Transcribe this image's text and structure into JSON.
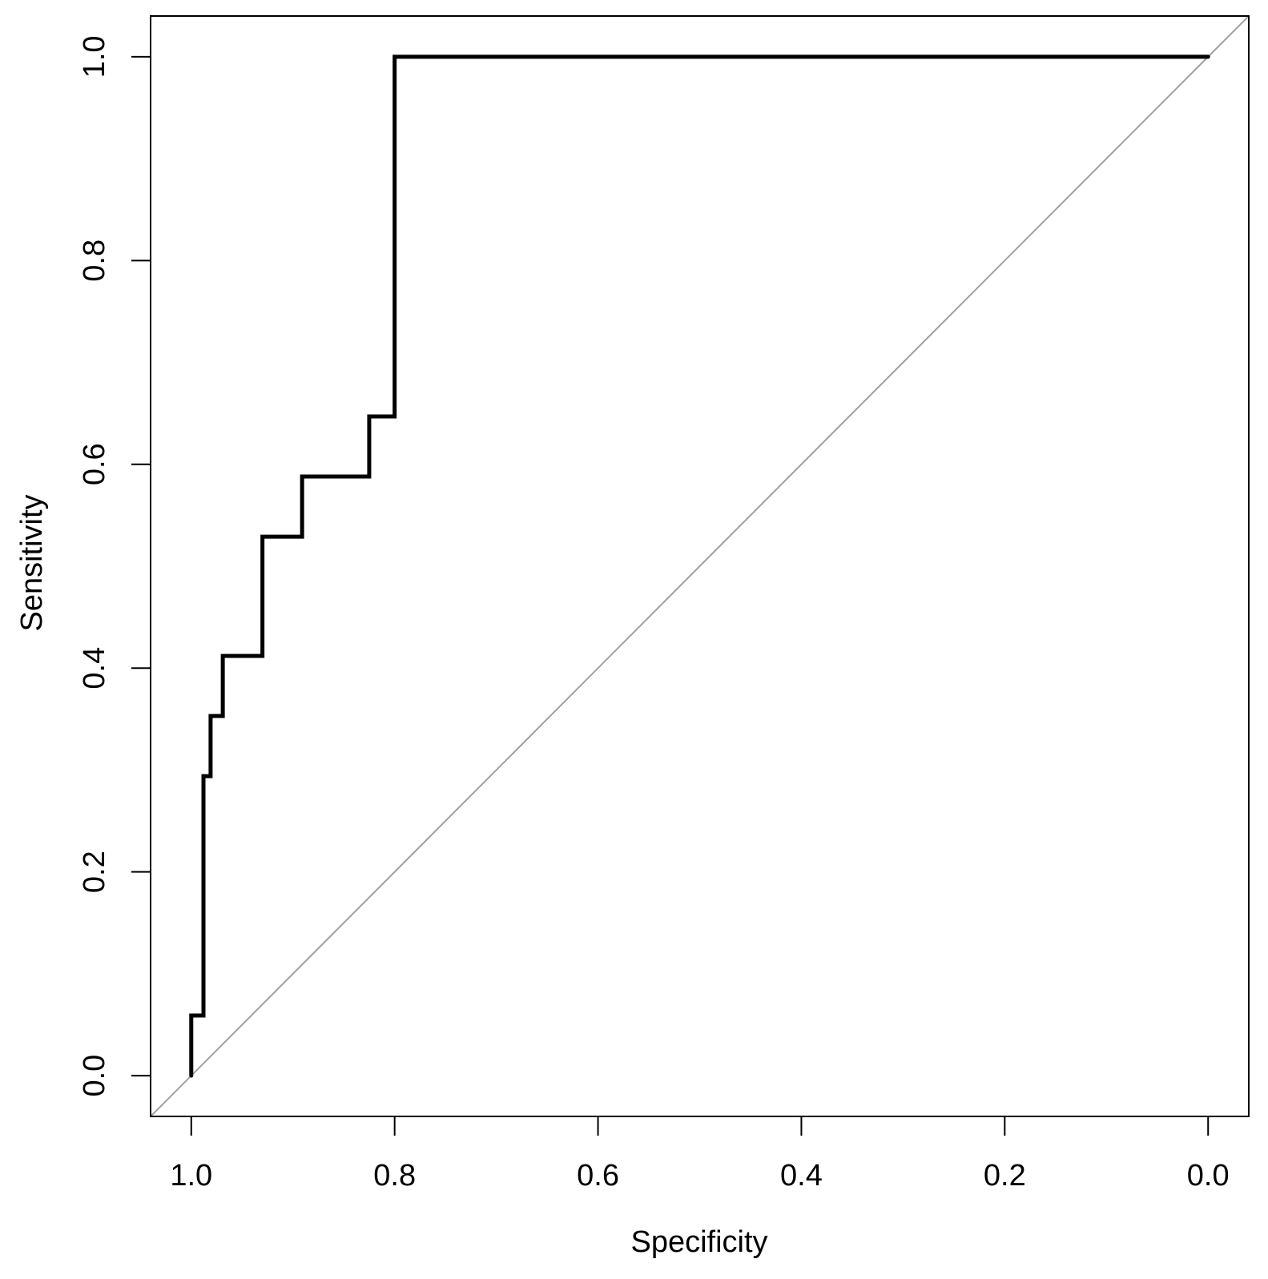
{
  "chart_data": {
    "type": "line",
    "title": "",
    "xlabel": "Specificity",
    "ylabel": "Sensitivity",
    "x_reversed": true,
    "xlim": [
      1.04,
      -0.04
    ],
    "ylim": [
      -0.04,
      1.04
    ],
    "x_ticks": [
      1.0,
      0.8,
      0.6,
      0.4,
      0.2,
      0.0
    ],
    "x_tick_labels": [
      "1.0",
      "0.8",
      "0.6",
      "0.4",
      "0.2",
      "0.0"
    ],
    "y_ticks": [
      0.0,
      0.2,
      0.4,
      0.6,
      0.8,
      1.0
    ],
    "y_tick_labels": [
      "0.0",
      "0.2",
      "0.4",
      "0.6",
      "0.8",
      "1.0"
    ],
    "grid": false,
    "legend": "none",
    "series": [
      {
        "style": "step",
        "color": "#000000",
        "points": [
          {
            "specificity": 1.0,
            "sensitivity": 0.0
          },
          {
            "specificity": 1.0,
            "sensitivity": 0.059
          },
          {
            "specificity": 0.988,
            "sensitivity": 0.059
          },
          {
            "specificity": 0.988,
            "sensitivity": 0.294
          },
          {
            "specificity": 0.981,
            "sensitivity": 0.294
          },
          {
            "specificity": 0.981,
            "sensitivity": 0.353
          },
          {
            "specificity": 0.969,
            "sensitivity": 0.353
          },
          {
            "specificity": 0.969,
            "sensitivity": 0.412
          },
          {
            "specificity": 0.93,
            "sensitivity": 0.412
          },
          {
            "specificity": 0.93,
            "sensitivity": 0.529
          },
          {
            "specificity": 0.891,
            "sensitivity": 0.529
          },
          {
            "specificity": 0.891,
            "sensitivity": 0.588
          },
          {
            "specificity": 0.825,
            "sensitivity": 0.588
          },
          {
            "specificity": 0.825,
            "sensitivity": 0.647
          },
          {
            "specificity": 0.8,
            "sensitivity": 0.647
          },
          {
            "specificity": 0.8,
            "sensitivity": 1.0
          },
          {
            "specificity": 0.0,
            "sensitivity": 1.0
          }
        ]
      }
    ],
    "reference_line": {
      "color": "#a0a0a0",
      "from": {
        "specificity": 1.04,
        "sensitivity": -0.04
      },
      "to": {
        "specificity": -0.04,
        "sensitivity": 1.04
      }
    }
  }
}
